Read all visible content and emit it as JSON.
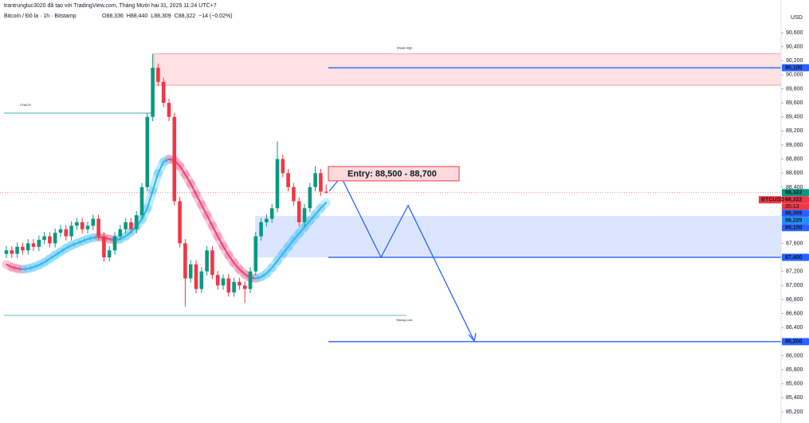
{
  "header": {
    "credit": "trantrungluc3020 đã tạo với TradingView.com, Tháng Mười hai 31, 2025 11:24 UTC+7",
    "symbol": "Bitcoin / Đô la · 1h · Bitstamp",
    "ohlc": [
      "O88,336",
      "H88,440",
      "L88,309",
      "C88,322",
      "−14 (−0.02%)"
    ]
  },
  "chart_data": {
    "type": "candlestick",
    "currency": "USD",
    "symbol_tag": "BTCUSD",
    "countdown": "35:13",
    "up_color": "#089981",
    "down_color": "#f23645",
    "grid": false,
    "ylim": [
      85041,
      91065
    ],
    "yticks": [
      {
        "value": 85200,
        "label": "85,200"
      },
      {
        "value": 85400,
        "label": "85,400"
      },
      {
        "value": 85600,
        "label": "85,600"
      },
      {
        "value": 85800,
        "label": "85,800"
      },
      {
        "value": 86000,
        "label": "86,000"
      },
      {
        "value": 86200,
        "label": "86,200"
      },
      {
        "value": 86400,
        "label": "86,400"
      },
      {
        "value": 86600,
        "label": "86,600"
      },
      {
        "value": 86800,
        "label": "86,800"
      },
      {
        "value": 87000,
        "label": "87,000"
      },
      {
        "value": 87200,
        "label": "87,200"
      },
      {
        "value": 87400,
        "label": "87,400"
      },
      {
        "value": 87600,
        "label": "87,600"
      },
      {
        "value": 87800,
        "label": "87,800"
      },
      {
        "value": 88000,
        "label": "88,000"
      },
      {
        "value": 88200,
        "label": "88,200"
      },
      {
        "value": 88400,
        "label": "88,400"
      },
      {
        "value": 88600,
        "label": "88,600"
      },
      {
        "value": 88800,
        "label": "88,800"
      },
      {
        "value": 89000,
        "label": "89,000"
      },
      {
        "value": 89200,
        "label": "89,200"
      },
      {
        "value": 89400,
        "label": "89,400"
      },
      {
        "value": 89600,
        "label": "89,600"
      },
      {
        "value": 89800,
        "label": "89,800"
      },
      {
        "value": 90000,
        "label": "90,000"
      },
      {
        "value": 90200,
        "label": "90,200"
      },
      {
        "value": 90400,
        "label": "90,400"
      },
      {
        "value": 90600,
        "label": "90,600"
      }
    ],
    "open": [
      87450,
      87500,
      87450,
      87550,
      87500,
      87600,
      87550,
      87650,
      87700,
      87600,
      87750,
      87800,
      87700,
      87850,
      87900,
      87800,
      87850,
      87950,
      87700,
      87400,
      87500,
      87700,
      87800,
      87900,
      87800,
      88000,
      88400,
      89400,
      90100,
      89900,
      89600,
      89400,
      88200,
      87600,
      87100,
      87300,
      86950,
      87200,
      87500,
      87150,
      87000,
      87100,
      86900,
      87050,
      87000,
      86950,
      87200,
      87700,
      87900,
      87950,
      88100,
      88800,
      88600,
      88400,
      88200,
      87900,
      88100,
      88400,
      88600,
      88336
    ],
    "high": [
      87560,
      87560,
      87610,
      87610,
      87660,
      87660,
      87710,
      87760,
      87760,
      87810,
      87860,
      87860,
      87910,
      87960,
      87960,
      87910,
      88010,
      88010,
      87760,
      87560,
      87760,
      87860,
      87960,
      87960,
      88060,
      88460,
      89460,
      90300,
      90160,
      89960,
      89660,
      89460,
      88260,
      87660,
      87360,
      87360,
      87260,
      87560,
      87560,
      87210,
      87160,
      87160,
      87110,
      87110,
      87060,
      87260,
      87760,
      87960,
      88010,
      88160,
      89050,
      88860,
      88660,
      88460,
      88260,
      88160,
      88460,
      88700,
      88660,
      88440
    ],
    "low": [
      87390,
      87390,
      87390,
      87440,
      87440,
      87490,
      87490,
      87590,
      87540,
      87540,
      87690,
      87640,
      87640,
      87790,
      87740,
      87740,
      87790,
      87640,
      87340,
      87340,
      87440,
      87640,
      87740,
      87740,
      87740,
      87940,
      88340,
      89340,
      89840,
      89540,
      89340,
      88140,
      87540,
      86700,
      87040,
      86890,
      86890,
      87140,
      87090,
      86940,
      86940,
      86840,
      86840,
      86940,
      86750,
      86890,
      87140,
      87640,
      87840,
      87890,
      88040,
      88540,
      88340,
      88140,
      87840,
      87840,
      88040,
      88340,
      88276,
      88309
    ],
    "close": [
      87500,
      87450,
      87550,
      87500,
      87600,
      87550,
      87650,
      87700,
      87600,
      87750,
      87800,
      87700,
      87850,
      87900,
      87800,
      87850,
      87950,
      87700,
      87400,
      87500,
      87700,
      87800,
      87900,
      87800,
      88000,
      88400,
      89400,
      90100,
      89900,
      89600,
      89400,
      88200,
      87600,
      87100,
      87300,
      86950,
      87200,
      87500,
      87150,
      87000,
      87100,
      86900,
      87050,
      87000,
      86950,
      87200,
      87700,
      87900,
      87950,
      88100,
      88800,
      88600,
      88400,
      88200,
      87900,
      88100,
      88400,
      88600,
      88336,
      88322
    ],
    "ribbon": {
      "up_color": "#2bb8f0",
      "down_color": "#e8437a",
      "values": [
        87300,
        87260,
        87240,
        87230,
        87240,
        87260,
        87290,
        87330,
        87380,
        87430,
        87480,
        87530,
        87570,
        87600,
        87630,
        87660,
        87680,
        87690,
        87680,
        87660,
        87650,
        87660,
        87700,
        87760,
        87840,
        87940,
        88100,
        88350,
        88600,
        88760,
        88800,
        88780,
        88700,
        88580,
        88450,
        88300,
        88150,
        88000,
        87850,
        87700,
        87560,
        87430,
        87320,
        87230,
        87160,
        87110,
        87100,
        87120,
        87170,
        87250,
        87350,
        87450,
        87550,
        87650,
        87740,
        87830,
        87920,
        88010,
        88100,
        88180
      ]
    },
    "zones": [
      {
        "top": 90300,
        "bottom": 89850,
        "color": "rgba(242,54,69,0.15)",
        "label": "Weak High"
      },
      {
        "top": 87990,
        "bottom": 87400,
        "color": "rgba(41,98,255,0.17)"
      }
    ],
    "levels": [
      {
        "value": 90100,
        "color": "#2962ff"
      },
      {
        "value": 87400,
        "color": "#2962ff"
      },
      {
        "value": 86200,
        "color": "#2962ff"
      }
    ],
    "structure": [
      {
        "value": 89454,
        "label": "CHoCH",
        "color": "#089981"
      },
      {
        "value": 86573,
        "label": "Strong Low",
        "color": "#089981"
      }
    ],
    "entry": "Entry: 88,500 - 88,700",
    "price_labels": [
      {
        "value": 90100,
        "label": "90,100",
        "color": "#2962ff"
      },
      {
        "value": 88322,
        "label": "88,322",
        "color": "#089981"
      },
      {
        "value": 88322,
        "label": "88,322",
        "color": "#f23645"
      },
      {
        "value": 88309,
        "label": "88,309",
        "color": "#2962ff"
      },
      {
        "value": 88229,
        "label": "88,229",
        "color": "#1e90ff"
      },
      {
        "value": 88150,
        "label": "88,150",
        "color": "#2962ff"
      },
      {
        "value": 87400,
        "label": "87,400",
        "color": "#2962ff"
      },
      {
        "value": 86200,
        "label": "86,200",
        "color": "#2962ff"
      }
    ]
  }
}
